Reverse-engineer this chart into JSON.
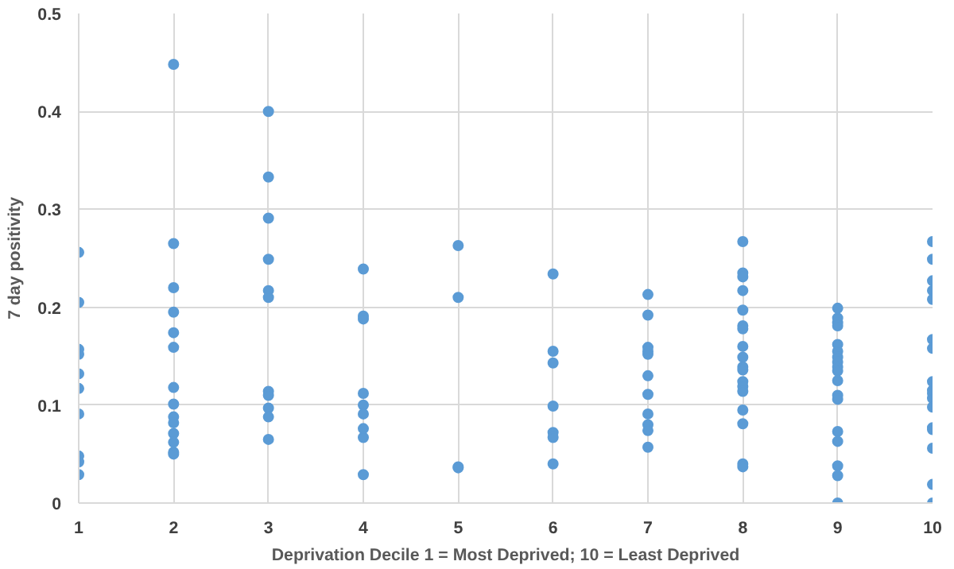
{
  "chart_data": {
    "type": "scatter",
    "xlabel": "Deprivation Decile 1 = Most Deprived; 10 = Least Deprived",
    "ylabel": "7 day positivity",
    "xlim": [
      1,
      10
    ],
    "xticks": [
      1,
      2,
      3,
      4,
      5,
      6,
      7,
      8,
      9,
      10
    ],
    "ylim": [
      0,
      0.5
    ],
    "yticks": [
      0,
      0.1,
      0.2,
      0.3,
      0.4,
      0.5
    ],
    "grid": true,
    "marker": "circle",
    "series": [
      {
        "color": "#5b9bd5",
        "x": [
          1,
          1,
          1,
          1,
          1,
          1,
          1,
          1,
          1,
          1,
          2,
          2,
          2,
          2,
          2,
          2,
          2,
          2,
          2,
          2,
          2,
          2,
          2,
          2,
          3,
          3,
          3,
          3,
          3,
          3,
          3,
          3,
          3,
          3,
          3,
          4,
          4,
          4,
          4,
          4,
          4,
          4,
          4,
          4,
          5,
          5,
          5,
          5,
          6,
          6,
          6,
          6,
          6,
          6,
          6,
          7,
          7,
          7,
          7,
          7,
          7,
          7,
          7,
          7,
          7,
          7,
          8,
          8,
          8,
          8,
          8,
          8,
          8,
          8,
          8,
          8,
          8,
          8,
          8,
          8,
          8,
          8,
          8,
          8,
          9,
          9,
          9,
          9,
          9,
          9,
          9,
          9,
          9,
          9,
          9,
          9,
          9,
          9,
          9,
          9,
          9,
          9,
          10,
          10,
          10,
          10,
          10,
          10,
          10,
          10,
          10,
          10,
          10,
          10,
          10,
          10,
          10,
          10,
          10
        ],
        "values": [
          0.256,
          0.205,
          0.157,
          0.152,
          0.132,
          0.117,
          0.091,
          0.048,
          0.042,
          0.029,
          0.448,
          0.265,
          0.22,
          0.195,
          0.174,
          0.159,
          0.118,
          0.101,
          0.088,
          0.082,
          0.071,
          0.062,
          0.052,
          0.05,
          0.4,
          0.333,
          0.291,
          0.249,
          0.217,
          0.21,
          0.114,
          0.11,
          0.097,
          0.088,
          0.065,
          0.239,
          0.191,
          0.188,
          0.112,
          0.1,
          0.091,
          0.076,
          0.067,
          0.029,
          0.263,
          0.21,
          0.037,
          0.036,
          0.234,
          0.155,
          0.143,
          0.099,
          0.072,
          0.067,
          0.04,
          0.213,
          0.192,
          0.159,
          0.155,
          0.152,
          0.13,
          0.111,
          0.091,
          0.08,
          0.074,
          0.057,
          0.267,
          0.235,
          0.231,
          0.217,
          0.197,
          0.181,
          0.178,
          0.16,
          0.149,
          0.139,
          0.136,
          0.124,
          0.119,
          0.114,
          0.095,
          0.081,
          0.04,
          0.037,
          0.199,
          0.189,
          0.184,
          0.181,
          0.162,
          0.155,
          0.149,
          0.144,
          0.139,
          0.135,
          0.125,
          0.11,
          0.106,
          0.073,
          0.063,
          0.038,
          0.028,
          0,
          0.267,
          0.249,
          0.227,
          0.217,
          0.208,
          0.167,
          0.158,
          0.124,
          0.115,
          0.112,
          0.107,
          0.098,
          0.077,
          0.075,
          0.056,
          0.019,
          0
        ]
      }
    ]
  }
}
